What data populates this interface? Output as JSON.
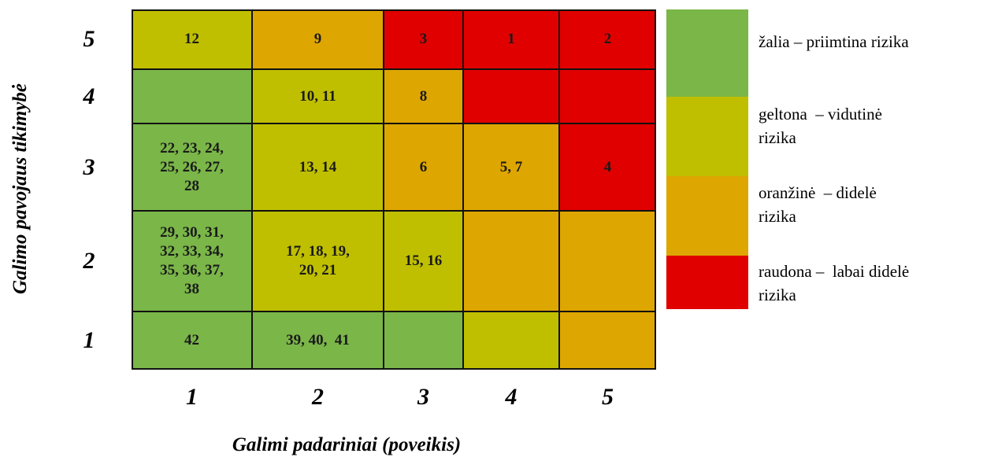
{
  "y_axis_title": "Galimo pavojaus tikimybė",
  "x_axis_title": "Galimi padariniai (poveikis)",
  "column_labels": [
    "1",
    "2",
    "3",
    "4",
    "5"
  ],
  "rows": [
    {
      "label": "5",
      "cells": [
        {
          "color": "#bfbf00",
          "lines": [
            "12"
          ]
        },
        {
          "color": "#dea600",
          "lines": [
            "9"
          ]
        },
        {
          "color": "#e00000",
          "lines": [
            "3"
          ]
        },
        {
          "color": "#e00000",
          "lines": [
            "1"
          ]
        },
        {
          "color": "#e00000",
          "lines": [
            "2"
          ]
        }
      ]
    },
    {
      "label": "4",
      "cells": [
        {
          "color": "#7ab648",
          "lines": []
        },
        {
          "color": "#bfbf00",
          "lines": [
            "10, 11"
          ]
        },
        {
          "color": "#dea600",
          "lines": [
            "8"
          ]
        },
        {
          "color": "#e00000",
          "lines": []
        },
        {
          "color": "#e00000",
          "lines": []
        }
      ]
    },
    {
      "label": "3",
      "cells": [
        {
          "color": "#7ab648",
          "lines": [
            "22, 23, 24,",
            "25, 26, 27,",
            "28"
          ]
        },
        {
          "color": "#bfbf00",
          "lines": [
            "13, 14"
          ]
        },
        {
          "color": "#dea600",
          "lines": [
            "6"
          ]
        },
        {
          "color": "#dea600",
          "lines": [
            "5, 7"
          ]
        },
        {
          "color": "#e00000",
          "lines": [
            "4"
          ]
        }
      ]
    },
    {
      "label": "2",
      "cells": [
        {
          "color": "#7ab648",
          "lines": [
            "29, 30, 31,",
            "32, 33, 34,",
            "35, 36, 37,",
            "38"
          ]
        },
        {
          "color": "#bfbf00",
          "lines": [
            "17, 18, 19,",
            "20, 21"
          ]
        },
        {
          "color": "#bfbf00",
          "lines": [
            "15, 16"
          ]
        },
        {
          "color": "#dea600",
          "lines": []
        },
        {
          "color": "#dea600",
          "lines": []
        }
      ]
    },
    {
      "label": "1",
      "cells": [
        {
          "color": "#7ab648",
          "lines": [
            "42"
          ]
        },
        {
          "color": "#7ab648",
          "lines": [
            "39, 40,  41"
          ]
        },
        {
          "color": "#7ab648",
          "lines": []
        },
        {
          "color": "#bfbf00",
          "lines": []
        },
        {
          "color": "#dea600",
          "lines": []
        }
      ]
    }
  ],
  "legend": [
    {
      "color": "#7ab648",
      "lines": [
        "žalia – priimtina rizika"
      ]
    },
    {
      "color": "#bfbf00",
      "lines": [
        "geltona  – vidutinė",
        "rizika"
      ]
    },
    {
      "color": "#dea600",
      "lines": [
        "oranžinė  – didelė",
        "rizika"
      ]
    },
    {
      "color": "#e00000",
      "lines": [
        "raudona –  labai didelė",
        "rizika"
      ]
    }
  ]
}
